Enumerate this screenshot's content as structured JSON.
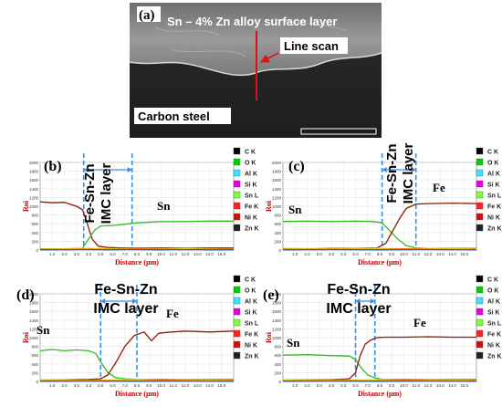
{
  "figure": {
    "sem": {
      "panel_label": "(a)",
      "layer_label": "Sn – 4% Zn alloy surface layer",
      "scan_label": "Line scan",
      "substrate_label": "Carbon steel"
    },
    "panels": [
      {
        "id": "b",
        "label": "(b)",
        "imc_title": "Fe-Sn-Zn IMC layer",
        "imc_lines": [
          "Fe-Sn-Zn",
          "IMC layer"
        ],
        "curve_labels": [
          "Sn"
        ],
        "ylabel": "Roi",
        "xlabel": "Distance (µm)",
        "yticks": [
          "0",
          "200",
          "400",
          "600",
          "800",
          "1000",
          "1200",
          "1400",
          "1600",
          "1800",
          "2000"
        ],
        "xticks": [
          "1.0",
          "2.0",
          "3.0",
          "4.0",
          "5.0",
          "6.0",
          "7.0",
          "8.0",
          "9.0",
          "10.0",
          "11.0",
          "12.0",
          "13.0",
          "14.0",
          "15.0"
        ],
        "legend": [
          {
            "label": "C K",
            "color": "#000000"
          },
          {
            "label": "O K",
            "color": "#00d000"
          },
          {
            "label": "Al K",
            "color": "#40e0ff"
          },
          {
            "label": "Si K",
            "color": "#e000e0"
          },
          {
            "label": "Sn L",
            "color": "#80ff40"
          },
          {
            "label": "Fe K",
            "color": "#ff2020"
          },
          {
            "label": "Ni K",
            "color": "#d01010"
          },
          {
            "label": "Zn K",
            "color": "#202020"
          }
        ]
      },
      {
        "id": "c",
        "label": "(c)",
        "imc_title": "Fe-Sn-Zn IMC layer",
        "imc_lines": [
          "Fe-Sn-Zn",
          "IMC layer"
        ],
        "curve_labels": [
          "Sn",
          "Fe"
        ],
        "ylabel": "Roi",
        "xlabel": "Distance (µm)",
        "yticks": [
          "0",
          "200",
          "400",
          "600",
          "800",
          "1000",
          "1200",
          "1400",
          "1600",
          "1800",
          "2000"
        ],
        "xticks": [
          "1.0",
          "2.0",
          "3.0",
          "4.0",
          "5.0",
          "6.0",
          "7.0",
          "8.0",
          "9.0",
          "10.0",
          "11.0",
          "12.0",
          "13.0",
          "14.0",
          "15.0"
        ],
        "legend": [
          {
            "label": "C K",
            "color": "#000000"
          },
          {
            "label": "O K",
            "color": "#00d000"
          },
          {
            "label": "Al K",
            "color": "#40e0ff"
          },
          {
            "label": "Si K",
            "color": "#e000e0"
          },
          {
            "label": "Sn L",
            "color": "#80ff40"
          },
          {
            "label": "Fe K",
            "color": "#ff2020"
          },
          {
            "label": "Ni K",
            "color": "#d01010"
          },
          {
            "label": "Zn K",
            "color": "#202020"
          }
        ]
      },
      {
        "id": "d",
        "label": "(d)",
        "imc_title": "Fe-Sn-Zn IMC layer",
        "imc_lines": [
          "Fe-Sn-Zn",
          "IMC layer"
        ],
        "curve_labels": [
          "Sn",
          "Fe"
        ],
        "ylabel": "Roi",
        "xlabel": "Distance (µm)",
        "yticks": [
          "0",
          "200",
          "400",
          "600",
          "800",
          "1000",
          "1200",
          "1400",
          "1600",
          "1800",
          "2000"
        ],
        "xticks": [
          "1.0",
          "2.0",
          "3.0",
          "4.0",
          "5.0",
          "6.0",
          "7.0",
          "8.0",
          "9.0",
          "10.0",
          "11.0",
          "12.0",
          "13.0",
          "14.0",
          "15.0"
        ],
        "legend": [
          {
            "label": "C K",
            "color": "#000000"
          },
          {
            "label": "O K",
            "color": "#00d000"
          },
          {
            "label": "Al K",
            "color": "#40e0ff"
          },
          {
            "label": "Si K",
            "color": "#e000e0"
          },
          {
            "label": "Sn L",
            "color": "#80ff40"
          },
          {
            "label": "Fe K",
            "color": "#ff2020"
          },
          {
            "label": "Ni K",
            "color": "#d01010"
          },
          {
            "label": "Zn K",
            "color": "#202020"
          }
        ]
      },
      {
        "id": "e",
        "label": "(e)",
        "imc_title": "Fe-Sn-Zn IMC layer",
        "imc_lines": [
          "Fe-Sn-Zn",
          "IMC layer"
        ],
        "curve_labels": [
          "Sn",
          "Fe"
        ],
        "ylabel": "Roi",
        "xlabel": "Distance (µm)",
        "yticks": [
          "0",
          "200",
          "400",
          "600",
          "800",
          "1000",
          "1200",
          "1400",
          "1600",
          "1800",
          "2000"
        ],
        "xticks": [
          "1.0",
          "2.0",
          "3.0",
          "4.0",
          "5.0",
          "6.0",
          "7.0",
          "8.0",
          "9.0",
          "10.0",
          "11.0",
          "12.0",
          "13.0",
          "14.0",
          "15.0"
        ],
        "legend": [
          {
            "label": "C K",
            "color": "#000000"
          },
          {
            "label": "O K",
            "color": "#00d000"
          },
          {
            "label": "Al K",
            "color": "#40e0ff"
          },
          {
            "label": "Si K",
            "color": "#e000e0"
          },
          {
            "label": "Sn L",
            "color": "#80ff40"
          },
          {
            "label": "Fe K",
            "color": "#ff2020"
          },
          {
            "label": "Ni K",
            "color": "#d01010"
          },
          {
            "label": "Zn K",
            "color": "#202020"
          }
        ]
      }
    ]
  },
  "chart_data": [
    {
      "panel": "b",
      "type": "line",
      "xlabel": "Distance (µm)",
      "ylabel": "Roi",
      "xlim": [
        0,
        16
      ],
      "ylim": [
        0,
        2000
      ],
      "imc_region": [
        3.6,
        7.6
      ],
      "series": [
        {
          "name": "Fe K",
          "color": "#8b1a00",
          "x": [
            0,
            1,
            2,
            3,
            3.5,
            3.9,
            4.3,
            4.8,
            5.5,
            6.5,
            8,
            10,
            12,
            14,
            16
          ],
          "y": [
            1100,
            1080,
            1090,
            1000,
            920,
            600,
            250,
            90,
            60,
            50,
            50,
            45,
            45,
            45,
            45
          ]
        },
        {
          "name": "Sn L",
          "color": "#33bb22",
          "x": [
            0,
            2,
            3.5,
            4,
            4.5,
            5,
            6,
            7,
            8,
            10,
            12,
            14,
            16
          ],
          "y": [
            30,
            30,
            40,
            250,
            450,
            550,
            560,
            590,
            620,
            650,
            650,
            660,
            660
          ]
        },
        {
          "name": "O K",
          "color": "#e0e000",
          "x": [
            0,
            4,
            6,
            8,
            10,
            12,
            14,
            16
          ],
          "y": [
            20,
            40,
            30,
            40,
            30,
            40,
            30,
            20
          ]
        },
        {
          "name": "Ni K",
          "color": "#ff2020",
          "x": [
            0,
            4,
            6,
            8,
            10,
            12,
            14,
            16
          ],
          "y": [
            10,
            15,
            10,
            20,
            15,
            10,
            15,
            10
          ]
        },
        {
          "name": "Si K",
          "color": "#1060ff",
          "x": [
            0,
            4,
            6,
            8,
            10,
            12,
            14,
            16
          ],
          "y": [
            5,
            8,
            5,
            8,
            5,
            8,
            5,
            5
          ]
        }
      ]
    },
    {
      "panel": "c",
      "type": "line",
      "xlabel": "Distance (µm)",
      "ylabel": "Roi",
      "xlim": [
        0,
        16
      ],
      "ylim": [
        0,
        2000
      ],
      "imc_region": [
        8.2,
        11.0
      ],
      "series": [
        {
          "name": "Sn L",
          "color": "#33bb22",
          "x": [
            0,
            2,
            4,
            6,
            7.5,
            8.2,
            8.8,
            9.5,
            10.2,
            11,
            12,
            14,
            16
          ],
          "y": [
            650,
            660,
            650,
            660,
            650,
            620,
            450,
            250,
            100,
            50,
            40,
            40,
            40
          ]
        },
        {
          "name": "Fe K",
          "color": "#8b1a00",
          "x": [
            0,
            2,
            4,
            6,
            7.8,
            8.5,
            9,
            9.6,
            10.2,
            11,
            12,
            14,
            16
          ],
          "y": [
            30,
            30,
            35,
            40,
            50,
            150,
            400,
            700,
            950,
            1050,
            1060,
            1070,
            1060
          ]
        },
        {
          "name": "O K",
          "color": "#e0e000",
          "x": [
            0,
            4,
            8,
            10,
            12,
            14,
            16
          ],
          "y": [
            40,
            30,
            40,
            30,
            40,
            30,
            30
          ]
        },
        {
          "name": "Ni K",
          "color": "#ff2020",
          "x": [
            0,
            4,
            8,
            10,
            12,
            14,
            16
          ],
          "y": [
            10,
            15,
            10,
            20,
            15,
            10,
            15
          ]
        },
        {
          "name": "Si K",
          "color": "#1060ff",
          "x": [
            0,
            4,
            8,
            12,
            16
          ],
          "y": [
            5,
            8,
            5,
            8,
            5
          ]
        }
      ]
    },
    {
      "panel": "d",
      "type": "line",
      "xlabel": "Distance (µm)",
      "ylabel": "Roi",
      "xlim": [
        0,
        16
      ],
      "ylim": [
        0,
        2000
      ],
      "imc_region": [
        5.0,
        8.0
      ],
      "series": [
        {
          "name": "Sn L",
          "color": "#33bb22",
          "x": [
            0,
            1,
            2,
            3,
            4,
            4.6,
            5.1,
            5.6,
            6.2,
            7,
            8,
            10,
            12,
            14,
            16
          ],
          "y": [
            700,
            730,
            700,
            720,
            700,
            640,
            400,
            200,
            90,
            60,
            50,
            45,
            45,
            45,
            45
          ]
        },
        {
          "name": "Fe K",
          "color": "#8b1a00",
          "x": [
            0,
            2,
            4,
            5,
            5.6,
            6.3,
            7,
            7.8,
            8.6,
            9.2,
            9.8,
            10.5,
            12,
            14,
            16
          ],
          "y": [
            40,
            40,
            45,
            60,
            150,
            450,
            800,
            1050,
            1130,
            930,
            1100,
            1120,
            1150,
            1130,
            1150
          ]
        },
        {
          "name": "O K",
          "color": "#e0e000",
          "x": [
            0,
            4,
            8,
            10,
            12,
            14,
            16
          ],
          "y": [
            40,
            30,
            40,
            30,
            40,
            30,
            30
          ]
        },
        {
          "name": "Ni K",
          "color": "#ff2020",
          "x": [
            0,
            4,
            8,
            10,
            12,
            14,
            16
          ],
          "y": [
            10,
            15,
            10,
            20,
            15,
            10,
            15
          ]
        },
        {
          "name": "Si K",
          "color": "#1060ff",
          "x": [
            0,
            4,
            8,
            12,
            16
          ],
          "y": [
            5,
            8,
            5,
            8,
            5
          ]
        }
      ]
    },
    {
      "panel": "e",
      "type": "line",
      "xlabel": "Distance (µm)",
      "ylabel": "Roi",
      "xlim": [
        0,
        16
      ],
      "ylim": [
        0,
        2000
      ],
      "imc_region": [
        6.0,
        7.6
      ],
      "series": [
        {
          "name": "Sn L",
          "color": "#33bb22",
          "x": [
            0,
            2,
            4,
            5.5,
            6,
            6.5,
            7,
            7.6,
            8.2,
            10,
            12,
            14,
            16
          ],
          "y": [
            600,
            610,
            590,
            580,
            500,
            300,
            150,
            80,
            50,
            45,
            45,
            45,
            45
          ]
        },
        {
          "name": "Fe K",
          "color": "#8b1a00",
          "x": [
            0,
            2,
            4,
            5.5,
            6,
            6.4,
            6.8,
            7.3,
            7.8,
            8.5,
            10,
            12,
            14,
            16
          ],
          "y": [
            40,
            40,
            40,
            60,
            200,
            600,
            850,
            950,
            1000,
            1010,
            1010,
            1020,
            1010,
            1010
          ]
        },
        {
          "name": "O K",
          "color": "#e0e000",
          "x": [
            0,
            4,
            8,
            10,
            12,
            14,
            16
          ],
          "y": [
            40,
            30,
            40,
            30,
            40,
            30,
            30
          ]
        },
        {
          "name": "Ni K",
          "color": "#ff2020",
          "x": [
            0,
            4,
            8,
            10,
            12,
            14,
            16
          ],
          "y": [
            10,
            15,
            10,
            20,
            15,
            10,
            15
          ]
        },
        {
          "name": "Si K",
          "color": "#1060ff",
          "x": [
            0,
            4,
            8,
            12,
            16
          ],
          "y": [
            5,
            8,
            5,
            8,
            5
          ]
        }
      ]
    }
  ]
}
